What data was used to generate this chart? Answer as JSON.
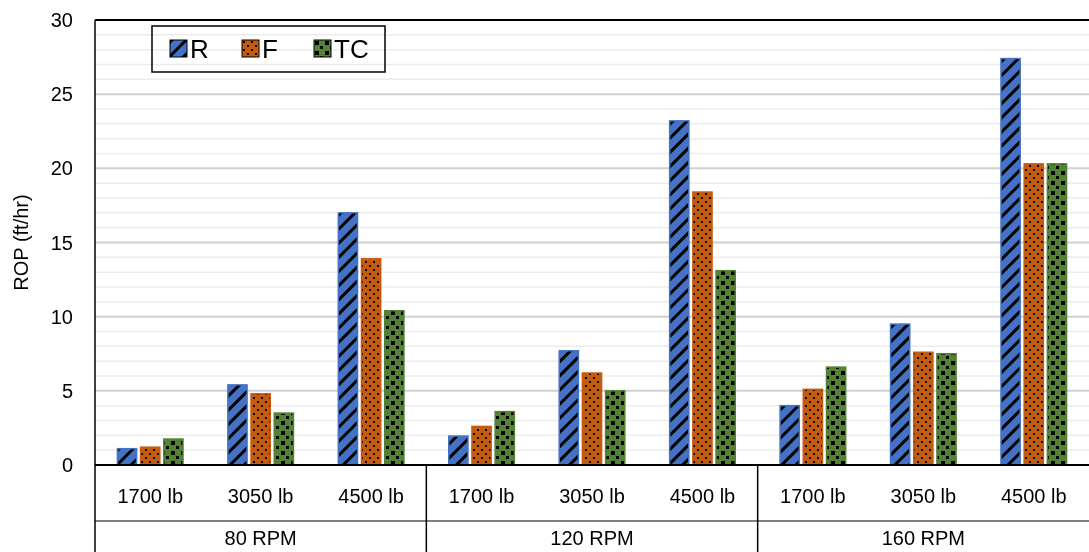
{
  "chart_data": {
    "type": "bar",
    "ylabel": "ROP (ft/hr)",
    "categories": [
      "1700 lb",
      "3050 lb",
      "4500 lb",
      "1700 lb",
      "3050 lb",
      "4500 lb",
      "1700 lb",
      "3050 lb",
      "4500 lb"
    ],
    "annotations": [
      "80 RPM",
      "120 RPM",
      "160 RPM"
    ],
    "series": [
      {
        "name": "R",
        "color": "#4472c4",
        "values": [
          1.1,
          5.4,
          17.0,
          1.95,
          7.7,
          23.2,
          4.0,
          9.5,
          27.4
        ]
      },
      {
        "name": "F",
        "color": "#c55a11",
        "values": [
          1.2,
          4.8,
          13.9,
          2.6,
          6.2,
          18.4,
          5.1,
          7.6,
          20.3
        ]
      },
      {
        "name": "TC",
        "color": "#548235",
        "values": [
          1.75,
          3.5,
          10.4,
          3.6,
          5.0,
          13.1,
          6.6,
          7.5,
          20.3
        ]
      }
    ],
    "ylim": [
      0,
      30
    ],
    "yticks": [
      0,
      {
        "value": 1,
        "label": null
      },
      {
        "value": 2,
        "label": null
      },
      {
        "value": 3,
        "label": null
      },
      {
        "value": 4,
        "label": null
      },
      5,
      {
        "value": 6,
        "label": null
      },
      {
        "value": 7,
        "label": null
      },
      {
        "value": 8,
        "label": null
      },
      {
        "value": 9,
        "label": null
      },
      10,
      {
        "value": 11,
        "label": null
      },
      {
        "value": 12,
        "label": null
      },
      {
        "value": 13,
        "label": null
      },
      {
        "value": 14,
        "label": null
      },
      15,
      {
        "value": 16,
        "label": null
      },
      {
        "value": 17,
        "label": null
      },
      {
        "value": 18,
        "label": null
      },
      {
        "value": 19,
        "label": null
      },
      20,
      {
        "value": 21,
        "label": null
      },
      {
        "value": 22,
        "label": null
      },
      {
        "value": 23,
        "label": null
      },
      {
        "value": 24,
        "label": null
      },
      25,
      {
        "value": 26,
        "label": null
      },
      {
        "value": 27,
        "label": null
      },
      {
        "value": 28,
        "label": null
      },
      {
        "value": 29,
        "label": null
      },
      30
    ],
    "grid": "y",
    "legend": "top left"
  }
}
